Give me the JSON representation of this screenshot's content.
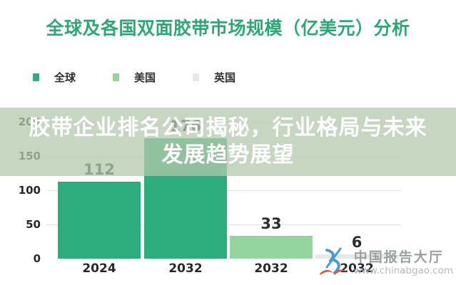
{
  "title": "全球及各国双面胶带市场规模（亿美元）分析",
  "legend": {
    "items": [
      {
        "label": "全球",
        "color": "#2dad7d"
      },
      {
        "label": "美国",
        "color": "#94d49e"
      },
      {
        "label": "英国",
        "color": "#e6eae4"
      }
    ]
  },
  "overlay": {
    "line1": "胶带企业排名公司揭秘，行业格局与未来",
    "line2": "发展趋势展望",
    "text_color": "#ffffff",
    "bg_color": "rgba(180,200,172,0.75)"
  },
  "chart_data": {
    "type": "bar",
    "title": "全球及各国双面胶带市场规模（亿美元）分析",
    "unit": "亿美元",
    "categories": [
      "2024",
      "2032",
      "2032",
      "2032"
    ],
    "values": [
      112,
      176,
      33,
      6
    ],
    "series": [
      {
        "name": "全球",
        "category": "2024",
        "value": 112
      },
      {
        "name": "全球",
        "category": "2032",
        "value": 176
      },
      {
        "name": "美国",
        "category": "2032",
        "value": 33
      },
      {
        "name": "英国",
        "category": "2032",
        "value": 6
      }
    ],
    "bar_colors": [
      "#2dad7d",
      "#2dad7d",
      "#94d49e",
      "#e6eae4"
    ],
    "y_ticks": [
      0,
      50,
      100,
      150,
      200
    ],
    "ylim": [
      0,
      200
    ],
    "grid": true,
    "legend_position": "top-left",
    "title_color": "#2fa678",
    "gridline_color": "#e4e5e3"
  },
  "watermark": {
    "site_name": "中国报告大厅",
    "site_url": "www.chinabgao.com",
    "logo_blue": "#4a9ad4",
    "logo_red": "#dd5a40"
  }
}
